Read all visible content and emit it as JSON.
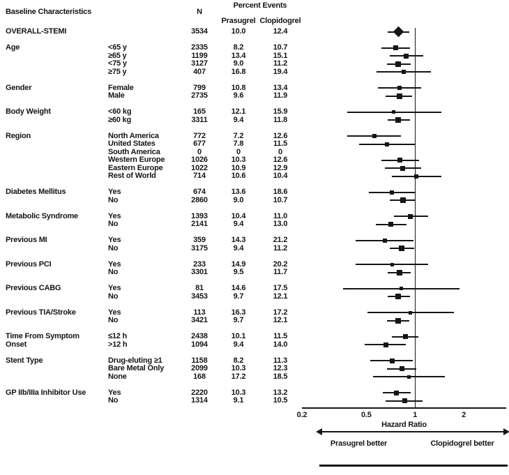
{
  "header": {
    "baseline_characteristics": "Baseline Characteristics",
    "n": "N",
    "percent_events": "Percent Events",
    "prasugrel": "Prasugrel",
    "clopidogrel": "Clopidogrel"
  },
  "chart_data": {
    "type": "forest",
    "title": "Hazard ratios for subgroups, Prasugrel vs Clopidogrel, STEMI",
    "columns": [
      "Baseline Characteristics",
      "N",
      "Prasugrel",
      "Clopidogrel"
    ],
    "axis": {
      "scale_min": 0.2,
      "scale_max": 3.66,
      "ticks": [
        {
          "value": 0.2,
          "label": "0.2"
        },
        {
          "value": 0.5,
          "label": "0.5"
        },
        {
          "value": 1,
          "label": "1"
        },
        {
          "value": 2,
          "label": "2"
        }
      ],
      "xlabel": "Hazard Ratio",
      "left_label": "Prasugrel better",
      "right_label": "Clopidogrel better",
      "reference": 1
    },
    "groups": [
      {
        "label": "OVERALL-STEMI",
        "rows": [
          {
            "subgroup": "",
            "n": "3534",
            "prasugrel": "10.0",
            "clopidogrel": "12.4",
            "hr": 0.79,
            "ci": [
              0.68,
              0.92
            ],
            "marker": "diamond"
          }
        ]
      },
      {
        "label": "Age",
        "rows": [
          {
            "subgroup": "<65 y",
            "n": "2335",
            "prasugrel": "8.2",
            "clopidogrel": "10.7",
            "hr": 0.76,
            "ci": [
              0.62,
              0.93
            ]
          },
          {
            "subgroup": "≥65 y",
            "n": "1199",
            "prasugrel": "13.4",
            "clopidogrel": "15.1",
            "hr": 0.88,
            "ci": [
              0.7,
              1.12
            ]
          },
          {
            "subgroup": "<75 y",
            "n": "3127",
            "prasugrel": "9.0",
            "clopidogrel": "11.2",
            "hr": 0.79,
            "ci": [
              0.67,
              0.94
            ]
          },
          {
            "subgroup": "≥75 y",
            "n": "407",
            "prasugrel": "16.8",
            "clopidogrel": "19.4",
            "hr": 0.85,
            "ci": [
              0.58,
              1.25
            ]
          }
        ]
      },
      {
        "label": "Gender",
        "rows": [
          {
            "subgroup": "Female",
            "n": "799",
            "prasugrel": "10.8",
            "clopidogrel": "13.4",
            "hr": 0.8,
            "ci": [
              0.59,
              1.09
            ]
          },
          {
            "subgroup": "Male",
            "n": "2735",
            "prasugrel": "9.6",
            "clopidogrel": "11.9",
            "hr": 0.8,
            "ci": [
              0.66,
              0.96
            ]
          }
        ]
      },
      {
        "label": "Body Weight",
        "rows": [
          {
            "subgroup": "<60 kg",
            "n": "165",
            "prasugrel": "12.1",
            "clopidogrel": "15.9",
            "hr": 0.74,
            "ci": [
              0.38,
              1.45
            ]
          },
          {
            "subgroup": "≥60 kg",
            "n": "3311",
            "prasugrel": "9.4",
            "clopidogrel": "11.8",
            "hr": 0.79,
            "ci": [
              0.68,
              0.93
            ]
          }
        ]
      },
      {
        "label": "Region",
        "rows": [
          {
            "subgroup": "North America",
            "n": "772",
            "prasugrel": "7.2",
            "clopidogrel": "12.6",
            "hr": 0.56,
            "ci": [
              0.38,
              0.82
            ]
          },
          {
            "subgroup": "United States",
            "n": "677",
            "prasugrel": "7.8",
            "clopidogrel": "11.5",
            "hr": 0.67,
            "ci": [
              0.45,
              1.0
            ]
          },
          {
            "subgroup": "South America",
            "n": "0",
            "prasugrel": "0",
            "clopidogrel": "0",
            "hr": null,
            "ci": null
          },
          {
            "subgroup": "Western Europe",
            "n": "1026",
            "prasugrel": "10.3",
            "clopidogrel": "12.6",
            "hr": 0.81,
            "ci": [
              0.62,
              1.06
            ]
          },
          {
            "subgroup": "Eastern Europe",
            "n": "1022",
            "prasugrel": "10.9",
            "clopidogrel": "12.9",
            "hr": 0.84,
            "ci": [
              0.65,
              1.09
            ]
          },
          {
            "subgroup": "Rest of World",
            "n": "714",
            "prasugrel": "10.6",
            "clopidogrel": "10.4",
            "hr": 1.02,
            "ci": [
              0.72,
              1.45
            ]
          }
        ]
      },
      {
        "label": "Diabetes Mellitus",
        "rows": [
          {
            "subgroup": "Yes",
            "n": "674",
            "prasugrel": "13.6",
            "clopidogrel": "18.6",
            "hr": 0.72,
            "ci": [
              0.52,
              1.0
            ]
          },
          {
            "subgroup": "No",
            "n": "2860",
            "prasugrel": "9.0",
            "clopidogrel": "10.7",
            "hr": 0.84,
            "ci": [
              0.7,
              1.01
            ]
          }
        ]
      },
      {
        "label": "Metabolic Syndrome",
        "rows": [
          {
            "subgroup": "Yes",
            "n": "1393",
            "prasugrel": "10.4",
            "clopidogrel": "11.0",
            "hr": 0.94,
            "ci": [
              0.74,
              1.2
            ]
          },
          {
            "subgroup": "No",
            "n": "2141",
            "prasugrel": "9.4",
            "clopidogrel": "13.0",
            "hr": 0.71,
            "ci": [
              0.57,
              0.89
            ]
          }
        ]
      },
      {
        "label": "Previous MI",
        "rows": [
          {
            "subgroup": "Yes",
            "n": "359",
            "prasugrel": "14.3",
            "clopidogrel": "21.2",
            "hr": 0.65,
            "ci": [
              0.43,
              0.98
            ]
          },
          {
            "subgroup": "No",
            "n": "3175",
            "prasugrel": "9.4",
            "clopidogrel": "11.2",
            "hr": 0.83,
            "ci": [
              0.7,
              0.99
            ]
          }
        ]
      },
      {
        "label": "Previous PCI",
        "rows": [
          {
            "subgroup": "Yes",
            "n": "233",
            "prasugrel": "14.9",
            "clopidogrel": "20.2",
            "hr": 0.72,
            "ci": [
              0.43,
              1.2
            ]
          },
          {
            "subgroup": "No",
            "n": "3301",
            "prasugrel": "9.5",
            "clopidogrel": "11.7",
            "hr": 0.8,
            "ci": [
              0.68,
              0.94
            ]
          }
        ]
      },
      {
        "label": "Previous CABG",
        "rows": [
          {
            "subgroup": "Yes",
            "n": "81",
            "prasugrel": "14.6",
            "clopidogrel": "17.5",
            "hr": 0.82,
            "ci": [
              0.36,
              1.88
            ]
          },
          {
            "subgroup": "No",
            "n": "3453",
            "prasugrel": "9.7",
            "clopidogrel": "12.1",
            "hr": 0.79,
            "ci": [
              0.68,
              0.93
            ]
          }
        ]
      },
      {
        "label": "Previous TIA/Stroke",
        "rows": [
          {
            "subgroup": "Yes",
            "n": "113",
            "prasugrel": "16.3",
            "clopidogrel": "17.2",
            "hr": 0.94,
            "ci": [
              0.51,
              1.74
            ]
          },
          {
            "subgroup": "No",
            "n": "3421",
            "prasugrel": "9.7",
            "clopidogrel": "12.1",
            "hr": 0.79,
            "ci": [
              0.67,
              0.92
            ]
          }
        ]
      },
      {
        "label": "Time From Symptom",
        "label2": "Onset",
        "rows": [
          {
            "subgroup": "≤12 h",
            "n": "2438",
            "prasugrel": "10.1",
            "clopidogrel": "11.5",
            "hr": 0.87,
            "ci": [
              0.72,
              1.05
            ]
          },
          {
            "subgroup": ">12 h",
            "n": "1094",
            "prasugrel": "9.4",
            "clopidogrel": "14.0",
            "hr": 0.66,
            "ci": [
              0.49,
              0.88
            ]
          }
        ]
      },
      {
        "label": "Stent Type",
        "rows": [
          {
            "subgroup": "Drug-eluting ≥1",
            "n": "1158",
            "prasugrel": "8.2",
            "clopidogrel": "11.3",
            "hr": 0.72,
            "ci": [
              0.53,
              0.97
            ]
          },
          {
            "subgroup": "Bare Metal Only",
            "n": "2099",
            "prasugrel": "10.3",
            "clopidogrel": "12.3",
            "hr": 0.83,
            "ci": [
              0.67,
              1.02
            ]
          },
          {
            "subgroup": "None",
            "n": "168",
            "prasugrel": "17.2",
            "clopidogrel": "18.5",
            "hr": 0.92,
            "ci": [
              0.55,
              1.53
            ]
          }
        ]
      },
      {
        "label": "GP IIb/IIIa Inhibitor Use",
        "rows": [
          {
            "subgroup": "Yes",
            "n": "2220",
            "prasugrel": "10.3",
            "clopidogrel": "13.2",
            "hr": 0.77,
            "ci": [
              0.63,
              0.94
            ]
          },
          {
            "subgroup": "No",
            "n": "1314",
            "prasugrel": "9.1",
            "clopidogrel": "10.5",
            "hr": 0.86,
            "ci": [
              0.66,
              1.11
            ]
          }
        ]
      }
    ]
  }
}
